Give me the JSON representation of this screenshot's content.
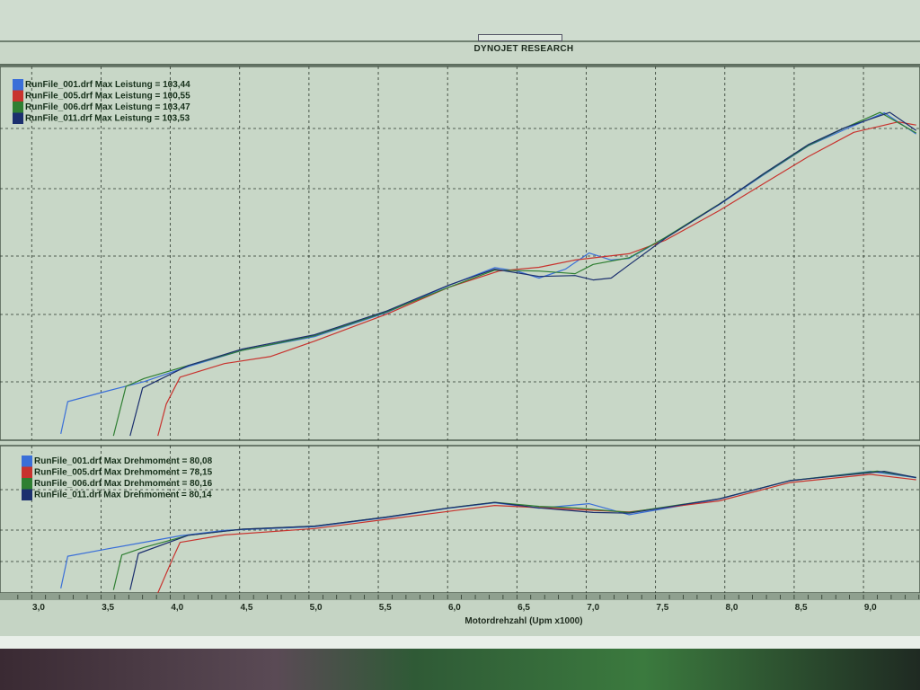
{
  "header": {
    "title": "DYNOJET RESEARCH"
  },
  "colors": {
    "run_001": "#3a6fd8",
    "run_005": "#c8332e",
    "run_006": "#2f7f32",
    "run_011": "#1b2f6e",
    "background": "#c5d4c4",
    "grid": "#2a352a"
  },
  "chart_data": [
    {
      "type": "line",
      "title": "",
      "xlabel": "Motordrehzahl (Upm x1000)",
      "ylabel": "",
      "xlim": [
        2.85,
        9.35
      ],
      "ylim": [
        0,
        118
      ],
      "grid": true,
      "legend_position": "top-left",
      "xticks": [
        "3,0",
        "3,5",
        "4,0",
        "4,5",
        "5,0",
        "5,5",
        "6,0",
        "6,5",
        "7,0",
        "7,5",
        "8,0",
        "8,5",
        "9,0"
      ],
      "series": [
        {
          "name": "RunFile_001.drf Max Leistung = 103,44",
          "color": "run_001",
          "points": [
            [
              3.16,
              2
            ],
            [
              3.21,
              12.2
            ],
            [
              3.5,
              15.6
            ],
            [
              3.76,
              18.5
            ],
            [
              4.08,
              23.3
            ],
            [
              4.47,
              28.4
            ],
            [
              4.99,
              32.7
            ],
            [
              5.51,
              40.3
            ],
            [
              5.96,
              48.9
            ],
            [
              6.29,
              54.5
            ],
            [
              6.45,
              53.4
            ],
            [
              6.61,
              51.2
            ],
            [
              6.8,
              54
            ],
            [
              6.97,
              59.1
            ],
            [
              7.13,
              56.9
            ],
            [
              7.26,
              57.4
            ],
            [
              7.52,
              63.9
            ],
            [
              7.91,
              74.4
            ],
            [
              8.23,
              83.8
            ],
            [
              8.55,
              92.9
            ],
            [
              8.81,
              98
            ],
            [
              9.1,
              103.4
            ],
            [
              9.33,
              96.7
            ]
          ]
        },
        {
          "name": "RunFile_005.drf Max Leistung = 100,55",
          "color": "run_005",
          "points": [
            [
              3.86,
              1.4
            ],
            [
              3.92,
              11.4
            ],
            [
              4.02,
              19.9
            ],
            [
              4.34,
              24.2
            ],
            [
              4.67,
              26.4
            ],
            [
              4.99,
              31.3
            ],
            [
              5.51,
              39.8
            ],
            [
              5.96,
              48.3
            ],
            [
              6.32,
              53.4
            ],
            [
              6.61,
              54.6
            ],
            [
              6.87,
              56.9
            ],
            [
              7.26,
              58.9
            ],
            [
              7.52,
              63.1
            ],
            [
              7.91,
              72.5
            ],
            [
              8.23,
              81
            ],
            [
              8.55,
              89.5
            ],
            [
              8.88,
              97.2
            ],
            [
              9.2,
              100.5
            ],
            [
              9.33,
              99.5
            ]
          ]
        },
        {
          "name": "RunFile_006.drf Max Leistung = 103,47",
          "color": "run_006",
          "points": [
            [
              3.54,
              1.4
            ],
            [
              3.63,
              17
            ],
            [
              3.76,
              19.5
            ],
            [
              4.08,
              23.6
            ],
            [
              4.47,
              28.4
            ],
            [
              4.99,
              33
            ],
            [
              5.51,
              40.5
            ],
            [
              5.96,
              48.3
            ],
            [
              6.29,
              53.7
            ],
            [
              6.61,
              53.4
            ],
            [
              6.87,
              52.6
            ],
            [
              7.0,
              55.5
            ],
            [
              7.26,
              57.6
            ],
            [
              7.52,
              64
            ],
            [
              7.91,
              74.6
            ],
            [
              8.23,
              84
            ],
            [
              8.55,
              93
            ],
            [
              8.81,
              98.5
            ],
            [
              9.07,
              103.5
            ],
            [
              9.33,
              97
            ]
          ]
        },
        {
          "name": "RunFile_011.drf Max Leistung = 103,53",
          "color": "run_011",
          "points": [
            [
              3.66,
              1.4
            ],
            [
              3.75,
              16.5
            ],
            [
              4.08,
              23.6
            ],
            [
              4.47,
              28.8
            ],
            [
              4.99,
              33.3
            ],
            [
              5.51,
              40.8
            ],
            [
              5.96,
              49
            ],
            [
              6.29,
              54
            ],
            [
              6.61,
              51.7
            ],
            [
              6.87,
              52
            ],
            [
              7.0,
              50.6
            ],
            [
              7.13,
              51.2
            ],
            [
              7.26,
              55.4
            ],
            [
              7.52,
              63.7
            ],
            [
              7.91,
              74.5
            ],
            [
              8.23,
              84.2
            ],
            [
              8.55,
              93.3
            ],
            [
              8.81,
              98.6
            ],
            [
              9.14,
              103.5
            ],
            [
              9.33,
              97.8
            ]
          ]
        }
      ]
    },
    {
      "type": "line",
      "title": "",
      "xlabel": "Motordrehzahl (Upm x1000)",
      "ylabel": "",
      "xlim": [
        2.85,
        9.35
      ],
      "ylim": [
        0,
        97
      ],
      "grid": true,
      "legend_position": "top-left",
      "series": [
        {
          "name": "RunFile_001.drf Max Drehmoment = 80,08",
          "color": "run_001",
          "points": [
            [
              3.16,
              3
            ],
            [
              3.21,
              24.2
            ],
            [
              3.5,
              29.1
            ],
            [
              4.02,
              37.6
            ],
            [
              4.34,
              41.2
            ],
            [
              4.99,
              43.6
            ],
            [
              5.51,
              49.7
            ],
            [
              5.96,
              55.8
            ],
            [
              6.29,
              59.4
            ],
            [
              6.61,
              55.8
            ],
            [
              6.97,
              58.8
            ],
            [
              7.26,
              51.5
            ],
            [
              7.91,
              61.8
            ],
            [
              8.42,
              73.9
            ],
            [
              9.0,
              80.1
            ],
            [
              9.33,
              75.8
            ]
          ]
        },
        {
          "name": "RunFile_005.drf Max Drehmoment = 78,15",
          "color": "run_005",
          "points": [
            [
              3.86,
              0
            ],
            [
              3.96,
              21.2
            ],
            [
              4.02,
              33.3
            ],
            [
              4.34,
              38.2
            ],
            [
              4.99,
              42.4
            ],
            [
              5.51,
              48.5
            ],
            [
              6.29,
              57.6
            ],
            [
              7.26,
              53.3
            ],
            [
              7.91,
              60.6
            ],
            [
              8.42,
              72.7
            ],
            [
              9.0,
              78.1
            ],
            [
              9.33,
              74.5
            ]
          ]
        },
        {
          "name": "RunFile_006.drf Max Drehmoment = 80,16",
          "color": "run_006",
          "points": [
            [
              3.54,
              2
            ],
            [
              3.6,
              25
            ],
            [
              3.76,
              30
            ],
            [
              4.08,
              38
            ],
            [
              4.47,
              42
            ],
            [
              4.99,
              44
            ],
            [
              5.51,
              50
            ],
            [
              5.96,
              56
            ],
            [
              6.29,
              59.7
            ],
            [
              6.61,
              57
            ],
            [
              6.87,
              56
            ],
            [
              7.26,
              53
            ],
            [
              7.91,
              62
            ],
            [
              8.42,
              74
            ],
            [
              9.05,
              80.2
            ],
            [
              9.33,
              76
            ]
          ]
        },
        {
          "name": "RunFile_011.drf Max Drehmoment = 80,14",
          "color": "run_011",
          "points": [
            [
              3.66,
              2
            ],
            [
              3.72,
              26
            ],
            [
              4.08,
              38
            ],
            [
              4.47,
              42
            ],
            [
              4.99,
              44
            ],
            [
              5.51,
              50
            ],
            [
              5.96,
              56
            ],
            [
              6.29,
              59.6
            ],
            [
              6.61,
              56
            ],
            [
              7.0,
              53
            ],
            [
              7.26,
              52.5
            ],
            [
              7.91,
              62
            ],
            [
              8.42,
              74
            ],
            [
              9.1,
              80.1
            ],
            [
              9.33,
              76
            ]
          ]
        }
      ]
    }
  ]
}
